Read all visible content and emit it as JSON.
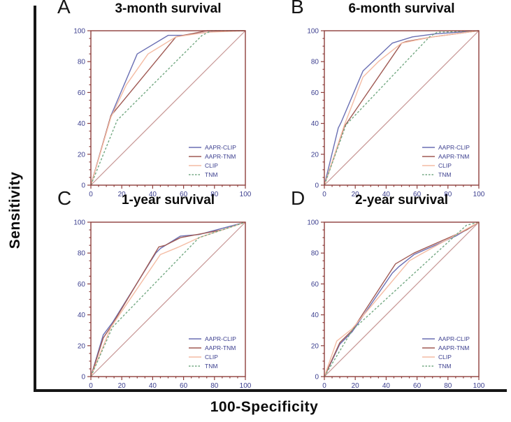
{
  "figure": {
    "y_axis_label": "Sensitivity",
    "x_axis_label": "100-Specificity"
  },
  "style": {
    "background": "#ffffff",
    "frame_color": "#8e3f3c",
    "tick_label_color": "#3c3f8f",
    "legend_text_color": "#3c3f8f",
    "outer_axis_color": "#161616",
    "title_color": "#0b0b0b"
  },
  "axes": {
    "xlim": [
      0,
      100
    ],
    "ylim": [
      0,
      100
    ],
    "x_ticks": [
      0,
      20,
      40,
      60,
      80,
      100
    ],
    "y_ticks": [
      0,
      20,
      40,
      60,
      80,
      100
    ],
    "minor_step": 5,
    "major_step": 20,
    "grid": false
  },
  "legend": {
    "position": "lower-right",
    "entries": [
      {
        "label": "AAPR-CLIP",
        "color": "#6a6fb3",
        "dash": false
      },
      {
        "label": "AAPR-TNM",
        "color": "#a05a54",
        "dash": false
      },
      {
        "label": "CLIP",
        "color": "#f4bca4",
        "dash": false
      },
      {
        "label": "TNM",
        "color": "#74a983",
        "dash": true
      }
    ]
  },
  "reference_line": {
    "color": "#c79694",
    "points": [
      [
        0,
        0
      ],
      [
        100,
        100
      ]
    ]
  },
  "chart_data": [
    {
      "type": "line",
      "panel_letter": "A",
      "title": "3-month survival",
      "xlabel": "100-Specificity",
      "ylabel": "Sensitivity",
      "series": [
        {
          "name": "AAPR-CLIP",
          "points": [
            [
              0,
              0
            ],
            [
              13,
              45
            ],
            [
              30,
              85
            ],
            [
              50,
              97
            ],
            [
              60,
              97
            ],
            [
              75,
              99
            ],
            [
              90,
              100
            ],
            [
              100,
              100
            ]
          ]
        },
        {
          "name": "AAPR-TNM",
          "points": [
            [
              0,
              0
            ],
            [
              13,
              45
            ],
            [
              55,
              96
            ],
            [
              60,
              97
            ],
            [
              75,
              100
            ],
            [
              100,
              100
            ]
          ]
        },
        {
          "name": "CLIP",
          "points": [
            [
              0,
              0
            ],
            [
              13,
              44
            ],
            [
              23,
              65
            ],
            [
              37,
              85
            ],
            [
              42,
              88
            ],
            [
              55,
              96
            ],
            [
              75,
              99
            ],
            [
              100,
              100
            ]
          ]
        },
        {
          "name": "TNM",
          "points": [
            [
              0,
              0
            ],
            [
              17,
              42
            ],
            [
              72,
              97
            ],
            [
              78,
              100
            ],
            [
              100,
              100
            ]
          ]
        }
      ]
    },
    {
      "type": "line",
      "panel_letter": "B",
      "title": "6-month survival",
      "xlabel": "100-Specificity",
      "ylabel": "Sensitivity",
      "series": [
        {
          "name": "AAPR-CLIP",
          "points": [
            [
              0,
              0
            ],
            [
              9,
              37
            ],
            [
              11,
              41
            ],
            [
              25,
              74
            ],
            [
              44,
              92
            ],
            [
              57,
              96
            ],
            [
              72,
              98
            ],
            [
              100,
              100
            ]
          ]
        },
        {
          "name": "AAPR-TNM",
          "points": [
            [
              0,
              0
            ],
            [
              13,
              38
            ],
            [
              50,
              92
            ],
            [
              53,
              93
            ],
            [
              70,
              96
            ],
            [
              100,
              100
            ]
          ]
        },
        {
          "name": "CLIP",
          "points": [
            [
              0,
              0
            ],
            [
              13,
              39
            ],
            [
              25,
              70
            ],
            [
              35,
              80
            ],
            [
              50,
              92
            ],
            [
              70,
              96
            ],
            [
              100,
              100
            ]
          ]
        },
        {
          "name": "TNM",
          "points": [
            [
              0,
              0
            ],
            [
              14,
              39
            ],
            [
              68,
              96
            ],
            [
              73,
              99
            ],
            [
              100,
              100
            ]
          ]
        }
      ]
    },
    {
      "type": "line",
      "panel_letter": "C",
      "title": "1-year survival",
      "xlabel": "100-Specificity",
      "ylabel": "Sensitivity",
      "series": [
        {
          "name": "AAPR-CLIP",
          "points": [
            [
              0,
              0
            ],
            [
              8,
              27
            ],
            [
              14,
              35
            ],
            [
              42,
              80
            ],
            [
              45,
              83
            ],
            [
              58,
              91
            ],
            [
              70,
              92
            ],
            [
              85,
              96
            ],
            [
              100,
              100
            ]
          ]
        },
        {
          "name": "AAPR-TNM",
          "points": [
            [
              0,
              0
            ],
            [
              8,
              25
            ],
            [
              14,
              34
            ],
            [
              44,
              84
            ],
            [
              48,
              85
            ],
            [
              58,
              90
            ],
            [
              85,
              95
            ],
            [
              100,
              100
            ]
          ]
        },
        {
          "name": "CLIP",
          "points": [
            [
              0,
              0
            ],
            [
              13,
              32
            ],
            [
              45,
              79
            ],
            [
              57,
              84
            ],
            [
              70,
              90
            ],
            [
              100,
              100
            ]
          ]
        },
        {
          "name": "TNM",
          "points": [
            [
              0,
              0
            ],
            [
              14,
              32
            ],
            [
              70,
              90
            ],
            [
              100,
              100
            ]
          ]
        }
      ]
    },
    {
      "type": "line",
      "panel_letter": "D",
      "title": "2-year survival",
      "xlabel": "100-Specificity",
      "ylabel": "Sensitivity",
      "series": [
        {
          "name": "AAPR-CLIP",
          "points": [
            [
              0,
              0
            ],
            [
              10,
              21
            ],
            [
              18,
              29
            ],
            [
              44,
              67
            ],
            [
              48,
              71
            ],
            [
              58,
              79
            ],
            [
              85,
              91
            ],
            [
              100,
              100
            ]
          ]
        },
        {
          "name": "AAPR-TNM",
          "points": [
            [
              0,
              0
            ],
            [
              10,
              22
            ],
            [
              18,
              30
            ],
            [
              46,
              73
            ],
            [
              58,
              80
            ],
            [
              92,
              95
            ],
            [
              100,
              100
            ]
          ]
        },
        {
          "name": "CLIP",
          "points": [
            [
              0,
              0
            ],
            [
              8,
              23
            ],
            [
              18,
              31
            ],
            [
              55,
              75
            ],
            [
              62,
              79
            ],
            [
              100,
              100
            ]
          ]
        },
        {
          "name": "TNM",
          "points": [
            [
              0,
              0
            ],
            [
              18,
              30
            ],
            [
              92,
              98
            ],
            [
              100,
              100
            ]
          ]
        }
      ]
    }
  ]
}
